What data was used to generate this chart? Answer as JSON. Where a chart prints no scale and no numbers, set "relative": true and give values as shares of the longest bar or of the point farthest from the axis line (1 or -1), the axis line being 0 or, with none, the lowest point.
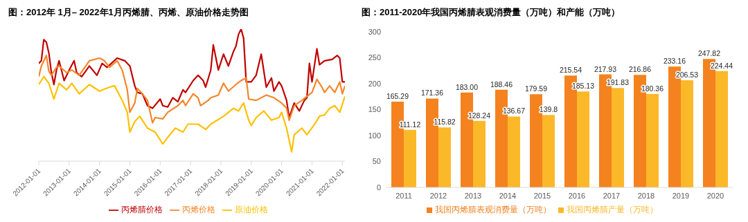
{
  "chart_data": [
    {
      "type": "line",
      "title": "图：2012年 1月– 2022年1月丙烯腈、丙烯、原油价格走势图",
      "relative": true,
      "legend": "bottom",
      "grid": false,
      "marker": "none",
      "line_style": "solid",
      "xlim": [
        "2012-01",
        "2022-02"
      ],
      "xticks": [
        "2012-01-01",
        "2013-01-01",
        "2014-01-01",
        "2015-01-01",
        "2016-01-01",
        "2017-01-01",
        "2018-01-01",
        "2019-01-01",
        "2020-01-01",
        "2021-01-01",
        "2022-01-01"
      ],
      "series": [
        {
          "name": "丙烯腈价格",
          "color": "#c00000",
          "x": [
            "2012-01",
            "2012-02",
            "2012-03",
            "2012-04",
            "2012-05",
            "2012-06",
            "2012-07",
            "2012-08",
            "2012-09",
            "2012-11",
            "2013-01",
            "2013-03",
            "2013-04",
            "2013-06",
            "2013-09",
            "2013-12",
            "2014-02",
            "2014-04",
            "2014-08",
            "2014-11",
            "2015-01",
            "2015-03",
            "2015-04",
            "2015-06",
            "2015-08",
            "2015-10",
            "2016-01",
            "2016-02",
            "2016-04",
            "2016-06",
            "2016-08",
            "2016-10",
            "2016-11",
            "2017-02",
            "2017-04",
            "2017-06",
            "2017-07",
            "2017-09",
            "2017-10",
            "2017-12",
            "2018-02",
            "2018-04",
            "2018-06",
            "2018-07",
            "2018-08",
            "2018-09",
            "2018-10",
            "2018-11",
            "2019-01",
            "2019-03",
            "2019-05",
            "2019-07",
            "2019-09",
            "2019-10",
            "2019-12",
            "2020-01",
            "2020-03",
            "2020-04",
            "2020-06",
            "2020-08",
            "2020-10",
            "2020-11",
            "2020-12",
            "2021-01",
            "2021-03",
            "2021-04",
            "2021-06",
            "2021-09",
            "2021-11",
            "2021-12",
            "2022-01",
            "2022-02"
          ],
          "values": [
            0.74,
            0.76,
            0.92,
            0.9,
            0.82,
            0.67,
            0.58,
            0.69,
            0.76,
            0.61,
            0.69,
            0.76,
            0.67,
            0.64,
            0.72,
            0.65,
            0.74,
            0.71,
            0.78,
            0.76,
            0.72,
            0.57,
            0.52,
            0.51,
            0.42,
            0.4,
            0.47,
            0.42,
            0.41,
            0.48,
            0.45,
            0.54,
            0.52,
            0.61,
            0.65,
            0.61,
            0.56,
            0.69,
            0.88,
            0.69,
            0.81,
            0.72,
            0.83,
            0.87,
            0.96,
            1.0,
            0.93,
            0.6,
            0.6,
            0.65,
            0.81,
            0.56,
            0.63,
            0.53,
            0.6,
            0.57,
            0.46,
            0.33,
            0.44,
            0.38,
            0.46,
            0.48,
            0.74,
            0.6,
            0.85,
            0.73,
            0.76,
            0.77,
            0.8,
            0.78,
            0.6,
            0.6
          ]
        },
        {
          "name": "丙烯价格",
          "color": "#f5862a",
          "x": [
            "2012-01",
            "2012-02",
            "2012-04",
            "2012-05",
            "2012-06",
            "2012-08",
            "2012-09",
            "2012-12",
            "2013-02",
            "2013-05",
            "2013-09",
            "2014-01",
            "2014-03",
            "2014-05",
            "2014-08",
            "2014-10",
            "2014-12",
            "2015-01",
            "2015-03",
            "2015-04",
            "2015-06",
            "2015-08",
            "2015-10",
            "2015-11",
            "2016-02",
            "2016-04",
            "2016-08",
            "2016-10",
            "2016-11",
            "2017-02",
            "2017-04",
            "2017-05",
            "2017-08",
            "2017-09",
            "2017-12",
            "2018-02",
            "2018-04",
            "2018-07",
            "2018-09",
            "2018-11",
            "2018-12",
            "2019-03",
            "2019-07",
            "2019-10",
            "2020-01",
            "2020-03",
            "2020-04",
            "2020-06",
            "2020-09",
            "2020-11",
            "2021-01",
            "2021-03",
            "2021-05",
            "2021-06",
            "2021-08",
            "2021-10",
            "2021-12",
            "2022-01",
            "2022-02"
          ],
          "values": [
            0.64,
            0.72,
            0.8,
            0.68,
            0.65,
            0.71,
            0.72,
            0.67,
            0.69,
            0.65,
            0.76,
            0.78,
            0.76,
            0.71,
            0.76,
            0.69,
            0.54,
            0.37,
            0.44,
            0.55,
            0.51,
            0.46,
            0.29,
            0.33,
            0.32,
            0.37,
            0.42,
            0.46,
            0.42,
            0.51,
            0.48,
            0.42,
            0.46,
            0.48,
            0.5,
            0.59,
            0.53,
            0.58,
            0.61,
            0.63,
            0.47,
            0.46,
            0.5,
            0.48,
            0.44,
            0.4,
            0.31,
            0.42,
            0.46,
            0.49,
            0.52,
            0.62,
            0.56,
            0.52,
            0.57,
            0.52,
            0.6,
            0.51,
            0.57
          ]
        },
        {
          "name": "原油价格",
          "color": "#ffc000",
          "x": [
            "2012-01",
            "2012-03",
            "2012-05",
            "2012-07",
            "2012-09",
            "2012-12",
            "2013-02",
            "2013-05",
            "2013-09",
            "2014-01",
            "2014-05",
            "2014-07",
            "2014-10",
            "2014-12",
            "2015-01",
            "2015-03",
            "2015-05",
            "2015-08",
            "2015-11",
            "2016-02",
            "2016-04",
            "2016-07",
            "2016-10",
            "2016-12",
            "2017-04",
            "2017-07",
            "2017-09",
            "2018-02",
            "2018-06",
            "2018-08",
            "2018-10",
            "2018-12",
            "2019-01",
            "2019-03",
            "2019-06",
            "2019-09",
            "2019-12",
            "2020-01",
            "2020-03",
            "2020-05",
            "2020-06",
            "2020-09",
            "2020-11",
            "2021-02",
            "2021-04",
            "2021-06",
            "2021-08",
            "2021-10",
            "2021-12",
            "2022-02"
          ],
          "values": [
            0.58,
            0.64,
            0.59,
            0.47,
            0.59,
            0.54,
            0.59,
            0.51,
            0.58,
            0.53,
            0.56,
            0.57,
            0.46,
            0.37,
            0.22,
            0.3,
            0.34,
            0.25,
            0.22,
            0.13,
            0.18,
            0.25,
            0.22,
            0.28,
            0.28,
            0.24,
            0.28,
            0.34,
            0.4,
            0.38,
            0.44,
            0.31,
            0.27,
            0.33,
            0.38,
            0.31,
            0.33,
            0.37,
            0.25,
            0.07,
            0.2,
            0.25,
            0.2,
            0.28,
            0.34,
            0.35,
            0.4,
            0.42,
            0.37,
            0.49
          ]
        }
      ]
    },
    {
      "type": "bar",
      "title": "图：2011-2020年我国丙烯腈表观消费量（万吨）和产能（万吨）",
      "legend": "bottom",
      "grid": false,
      "data_labels": true,
      "categories": [
        "2011",
        "2012",
        "2013",
        "2014",
        "2015",
        "2016",
        "2017",
        "2018",
        "2019",
        "2020"
      ],
      "ylim": [
        0,
        300
      ],
      "yticks": [
        0,
        50,
        100,
        150,
        200,
        250,
        300
      ],
      "series": [
        {
          "name": "我国丙烯腈表观消费量（万吨）",
          "color": "#f4821f",
          "values": [
            165.29,
            171.36,
            183.0,
            188.46,
            179.59,
            215.54,
            217.93,
            216.86,
            233.16,
            247.82
          ],
          "value_labels": [
            "165.29",
            "171.36",
            "183.00",
            "188.46",
            "179.59",
            "215.54",
            "217.93",
            "216.86",
            "233.16",
            "247.82"
          ]
        },
        {
          "name": "我国丙烯腈产量（万吨）",
          "color": "#fbb829",
          "values": [
            111.12,
            115.82,
            128.24,
            136.67,
            139.8,
            185.13,
            191.83,
            180.36,
            206.53,
            224.44
          ],
          "value_labels": [
            "111.12",
            "115.82",
            "128.24",
            "136.67",
            "139.8",
            "185.13",
            "191.83",
            "180.36",
            "206.53",
            "224.44"
          ]
        }
      ]
    }
  ]
}
